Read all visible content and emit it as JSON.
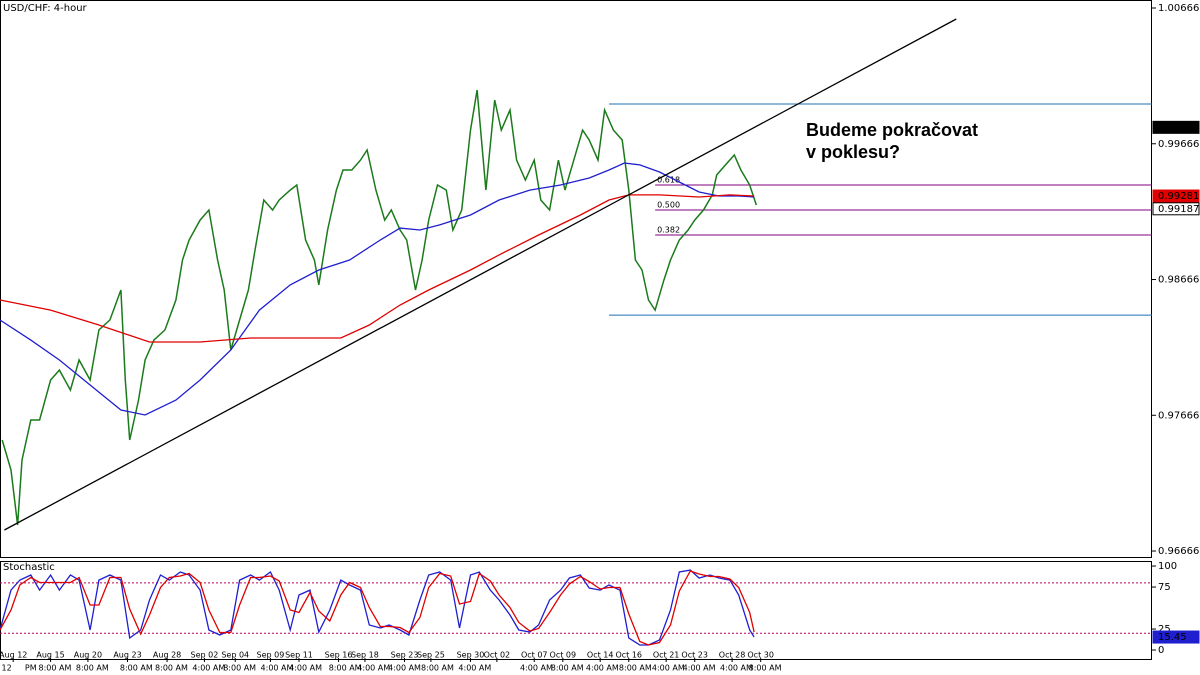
{
  "chart_data": [
    {
      "type": "line",
      "title": "USD/CHF: 4-hour",
      "annotation": [
        "Budeme pokračovat",
        "v poklesu?"
      ],
      "xlim": [
        0,
        524
      ],
      "ylim": [
        0.96622,
        1.00725
      ],
      "yticks": [
        0.96666,
        0.97666,
        0.98666,
        0.99666,
        1.00666
      ],
      "xticks": [
        {
          "value": 6,
          "label": "Aug 12"
        },
        {
          "value": 23,
          "label": "Aug 15"
        },
        {
          "value": 40,
          "label": "Aug 20"
        },
        {
          "value": 58,
          "label": "Aug 23"
        },
        {
          "value": 76,
          "label": "Aug 28"
        },
        {
          "value": 93,
          "label": "Sep 02"
        },
        {
          "value": 107,
          "label": "Sep 04"
        },
        {
          "value": 123,
          "label": "Sep 09"
        },
        {
          "value": 136,
          "label": "Sep 11"
        },
        {
          "value": 154,
          "label": "Sep 16"
        },
        {
          "value": 166,
          "label": "Sep 18"
        },
        {
          "value": 184,
          "label": "Sep 23"
        },
        {
          "value": 196,
          "label": "Sep 25"
        },
        {
          "value": 214,
          "label": "Sep 30"
        },
        {
          "value": 226,
          "label": "Oct 02"
        },
        {
          "value": 243,
          "label": "Oct 07"
        },
        {
          "value": 256,
          "label": "Oct 09"
        },
        {
          "value": 273,
          "label": "Oct 14"
        },
        {
          "value": 286,
          "label": "Oct 16"
        },
        {
          "value": 303,
          "label": "Oct 21"
        },
        {
          "value": 316,
          "label": "Oct 23"
        },
        {
          "value": 333,
          "label": "Oct 28"
        },
        {
          "value": 346,
          "label": "Oct 30"
        }
      ],
      "xticks_time": [
        {
          "value": 3,
          "label": "12"
        },
        {
          "value": 14,
          "label": "PM"
        },
        {
          "value": 25,
          "label": "8:00 AM"
        },
        {
          "value": 42,
          "label": "8:00 AM"
        },
        {
          "value": 62,
          "label": "8:00 AM"
        },
        {
          "value": 78,
          "label": "8:00 AM"
        },
        {
          "value": 95,
          "label": "4:00 AM"
        },
        {
          "value": 109,
          "label": "8:00 AM"
        },
        {
          "value": 126,
          "label": "4:00 AM"
        },
        {
          "value": 139,
          "label": "4:00 AM"
        },
        {
          "value": 157,
          "label": "8:00 AM"
        },
        {
          "value": 170,
          "label": "4:00 AM"
        },
        {
          "value": 184,
          "label": "4:00 AM"
        },
        {
          "value": 199,
          "label": "8:00 AM"
        },
        {
          "value": 216,
          "label": "4:00 AM"
        },
        {
          "value": 244,
          "label": "4:00 AM"
        },
        {
          "value": 258,
          "label": "8:00 AM"
        },
        {
          "value": 274,
          "label": "4:00 AM"
        },
        {
          "value": 289,
          "label": "8:00 AM"
        },
        {
          "value": 304,
          "label": "4:00 AM"
        },
        {
          "value": 318,
          "label": "4:00 AM"
        },
        {
          "value": 335,
          "label": "4:00 AM"
        },
        {
          "value": 348,
          "label": "8:00 AM"
        }
      ],
      "series": [
        {
          "color": "#1b7a1b",
          "x": [
            1,
            5,
            8,
            10,
            14,
            18,
            23,
            27,
            32,
            36,
            41,
            45,
            50,
            55,
            57,
            59,
            63,
            66,
            70,
            75,
            80,
            83,
            86,
            91,
            95,
            99,
            102,
            105,
            109,
            113,
            116,
            120,
            124,
            127,
            132,
            135,
            139,
            143,
            145,
            149,
            153,
            156,
            160,
            164,
            167,
            171,
            175,
            178,
            182,
            185,
            189,
            192,
            195,
            199,
            203,
            206,
            210,
            214,
            217,
            221,
            225,
            228,
            232,
            235,
            239,
            243,
            246,
            250,
            254,
            257,
            261,
            265,
            268,
            272,
            275,
            279,
            283,
            286,
            289,
            292,
            295,
            298,
            302,
            305,
            309,
            313,
            316,
            320,
            324,
            326,
            330,
            334,
            337,
            341,
            344
          ],
          "values": [
            0.97484,
            0.97263,
            0.96858,
            0.97336,
            0.97631,
            0.97631,
            0.97926,
            0.97999,
            0.97852,
            0.98073,
            0.97926,
            0.98294,
            0.98368,
            0.98589,
            0.97926,
            0.97484,
            0.97778,
            0.98073,
            0.9822,
            0.98294,
            0.98515,
            0.9881,
            0.98957,
            0.99104,
            0.99178,
            0.9881,
            0.98589,
            0.98147,
            0.98368,
            0.98589,
            0.98883,
            0.99252,
            0.99178,
            0.99252,
            0.99325,
            0.99362,
            0.98957,
            0.9881,
            0.98626,
            0.99031,
            0.99325,
            0.99473,
            0.99473,
            0.99546,
            0.9962,
            0.99325,
            0.99104,
            0.99178,
            0.99031,
            0.98957,
            0.98589,
            0.9881,
            0.99104,
            0.99362,
            0.99325,
            0.99031,
            0.99178,
            0.99767,
            1.00062,
            0.99325,
            0.99988,
            0.99767,
            0.99915,
            0.99546,
            0.99399,
            0.99546,
            0.99252,
            0.99178,
            0.99546,
            0.99325,
            0.99546,
            0.99767,
            0.99694,
            0.99546,
            0.99915,
            0.99767,
            0.99694,
            0.99325,
            0.9881,
            0.98736,
            0.98515,
            0.98441,
            0.98662,
            0.9881,
            0.98957,
            0.99031,
            0.99104,
            0.99178,
            0.99289,
            0.99436,
            0.9951,
            0.99583,
            0.99473,
            0.99362,
            0.99215
          ]
        },
        {
          "color": "#1f1fd0",
          "x": [
            0,
            14,
            27,
            41,
            55,
            66,
            80,
            91,
            105,
            118,
            132,
            145,
            159,
            173,
            182,
            191,
            200,
            214,
            227,
            241,
            255,
            268,
            277,
            284,
            291,
            300,
            309,
            318,
            327,
            336,
            343
          ],
          "values": [
            0.98368,
            0.9822,
            0.98073,
            0.97889,
            0.97705,
            0.97668,
            0.97778,
            0.97926,
            0.98147,
            0.98441,
            0.98626,
            0.98736,
            0.9881,
            0.98957,
            0.99045,
            0.99031,
            0.99068,
            0.99141,
            0.99252,
            0.99325,
            0.99362,
            0.99414,
            0.99473,
            0.99524,
            0.9951,
            0.99458,
            0.99384,
            0.99311,
            0.99281,
            0.99281,
            0.99274
          ]
        },
        {
          "color": "#e00000",
          "x": [
            0,
            23,
            45,
            68,
            91,
            114,
            136,
            155,
            168,
            182,
            195,
            214,
            227,
            245,
            264,
            277,
            286,
            300,
            318,
            332,
            343
          ],
          "values": [
            0.98515,
            0.98441,
            0.98331,
            0.98206,
            0.98206,
            0.98235,
            0.98235,
            0.98235,
            0.98331,
            0.98478,
            0.98589,
            0.98736,
            0.98847,
            0.98994,
            0.99141,
            0.99252,
            0.99289,
            0.99289,
            0.99274,
            0.99289,
            0.99281
          ]
        },
        {
          "color": "#000000",
          "x": [
            2,
            435
          ],
          "values": [
            0.96821,
            1.00585
          ]
        }
      ],
      "levels": [
        {
          "value": 0.99959,
          "x": [
            277,
            524
          ],
          "color": "#1f6fb0"
        },
        {
          "value": 0.98404,
          "x": [
            277,
            524
          ],
          "color": "#1f6fb0"
        }
      ],
      "fib_levels": [
        {
          "value": 0.99362,
          "label": "0.618",
          "x": [
            298,
            524
          ],
          "color": "#800080"
        },
        {
          "value": 0.99178,
          "label": "0.500",
          "x": [
            298,
            524
          ],
          "color": "#800080"
        },
        {
          "value": 0.98994,
          "label": "0.382",
          "x": [
            298,
            524
          ],
          "color": "#800080"
        }
      ],
      "price_tags": [
        {
          "value": 0.99787,
          "color": "#000000"
        },
        {
          "value": 0.99281,
          "color": "#e00000"
        },
        {
          "value": 0.99187,
          "color": "#ffffff"
        }
      ]
    },
    {
      "type": "line",
      "title": "Stochastic",
      "xlim": [
        0,
        524
      ],
      "ylim": [
        -9.5,
        104.8
      ],
      "yticks": [
        0,
        25,
        75,
        100
      ],
      "levels": [
        20,
        80
      ],
      "series": [
        {
          "color": "#1f1fd0",
          "x": [
            0,
            5,
            9,
            14,
            18,
            23,
            27,
            32,
            36,
            41,
            45,
            50,
            55,
            59,
            64,
            68,
            73,
            77,
            82,
            86,
            91,
            95,
            100,
            105,
            109,
            114,
            118,
            123,
            127,
            132,
            136,
            141,
            145,
            150,
            155,
            159,
            164,
            168,
            173,
            177,
            182,
            186,
            191,
            195,
            200,
            205,
            209,
            214,
            218,
            223,
            227,
            232,
            236,
            241,
            245,
            250,
            255,
            259,
            264,
            268,
            273,
            277,
            282,
            286,
            291,
            295,
            300,
            305,
            309,
            314,
            318,
            323,
            327,
            332,
            336,
            341,
            343
          ],
          "values": [
            23.8,
            71.4,
            83.3,
            89.3,
            71.4,
            89.3,
            71.4,
            89.3,
            83.3,
            23.8,
            83.3,
            89.3,
            83.3,
            14.3,
            23.8,
            59.5,
            89.3,
            83.3,
            92.9,
            89.3,
            71.4,
            23.8,
            17.9,
            23.8,
            83.3,
            89.3,
            83.3,
            92.9,
            71.4,
            23.8,
            65.5,
            71.4,
            21.4,
            47.6,
            83.3,
            77.4,
            71.4,
            29.8,
            26.2,
            29.8,
            23.8,
            17.9,
            59.5,
            89.3,
            92.9,
            83.3,
            26.2,
            89.3,
            92.9,
            71.4,
            59.5,
            41.7,
            23.8,
            21.4,
            29.8,
            59.5,
            71.4,
            85.7,
            89.3,
            73.8,
            71.4,
            77.4,
            71.4,
            14.3,
            6.0,
            6.0,
            11.9,
            47.6,
            92.9,
            95.2,
            85.7,
            89.3,
            85.7,
            83.3,
            65.5,
            23.8,
            15.45
          ]
        },
        {
          "color": "#e00000",
          "x": [
            0,
            5,
            9,
            14,
            18,
            23,
            27,
            32,
            36,
            41,
            45,
            50,
            55,
            59,
            64,
            68,
            73,
            77,
            82,
            86,
            91,
            95,
            100,
            105,
            109,
            114,
            118,
            123,
            127,
            132,
            136,
            141,
            145,
            150,
            155,
            159,
            164,
            168,
            173,
            177,
            182,
            186,
            191,
            195,
            200,
            205,
            209,
            214,
            218,
            223,
            227,
            232,
            236,
            241,
            245,
            250,
            255,
            259,
            264,
            268,
            273,
            277,
            282,
            286,
            291,
            295,
            300,
            305,
            309,
            314,
            318,
            323,
            327,
            332,
            336,
            341,
            343
          ],
          "values": [
            23.8,
            47.6,
            77.4,
            86.3,
            80.4,
            80.4,
            80.4,
            80.4,
            86.3,
            53.6,
            53.6,
            86.3,
            86.3,
            48.8,
            19.1,
            41.7,
            74.4,
            86.3,
            88.1,
            91.1,
            80.4,
            47.6,
            20.9,
            20.9,
            53.6,
            86.3,
            86.3,
            88.1,
            82.2,
            47.6,
            44.7,
            68.5,
            46.4,
            34.5,
            65.5,
            80.4,
            74.4,
            50.6,
            28.0,
            28.0,
            26.8,
            20.9,
            38.7,
            74.4,
            91.1,
            88.1,
            54.8,
            57.8,
            91.1,
            82.2,
            65.5,
            50.6,
            32.8,
            22.6,
            25.6,
            44.7,
            65.5,
            78.6,
            87.5,
            81.6,
            72.6,
            74.4,
            74.4,
            42.9,
            10.2,
            6.0,
            9.0,
            29.8,
            70.2,
            94.1,
            90.5,
            87.5,
            87.5,
            84.5,
            74.4,
            44.7,
            21.4
          ]
        }
      ],
      "tag": {
        "value": 15.45,
        "color": "#1f1fd0"
      }
    }
  ]
}
